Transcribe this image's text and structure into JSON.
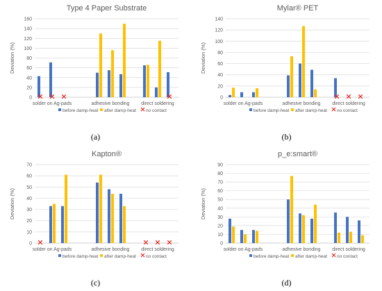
{
  "legend_labels": [
    "before damp-heat",
    "after damp-heat",
    "no contact"
  ],
  "colors": {
    "before": "#4472C4",
    "after": "#FFC000",
    "nocontact": "#E8261F",
    "grid": "#d9d9d9",
    "axis": "#bfbfbf",
    "text": "#595959"
  },
  "chart_data": [
    {
      "type": "bar",
      "panel_label": "(a)",
      "title": "Type 4 Paper Substrate",
      "ylabel": "Deviation (%)",
      "xlabel": "",
      "ylim": [
        0,
        160
      ],
      "yticks": [
        0,
        20,
        40,
        60,
        80,
        100,
        120,
        140,
        160
      ],
      "grid": true,
      "legend_position": "bottom",
      "groups": [
        "solder on Ag-pads",
        "adhesive bonding",
        "direct soldering"
      ],
      "series": [
        {
          "name": "before damp-heat",
          "values": [
            [
              43,
              71,
              null
            ],
            [
              50,
              55,
              47
            ],
            [
              65,
              20,
              51
            ]
          ]
        },
        {
          "name": "after damp-heat",
          "values": [
            [
              null,
              null,
              null
            ],
            [
              130,
              96,
              150
            ],
            [
              66,
              115,
              null
            ]
          ]
        }
      ],
      "no_contact": [
        [
          true,
          true,
          true
        ],
        [
          false,
          false,
          false
        ],
        [
          false,
          false,
          true
        ]
      ]
    },
    {
      "type": "bar",
      "panel_label": "(b)",
      "title": "Mylar® PET",
      "ylabel": "Deviation (%)",
      "xlabel": "",
      "ylim": [
        0,
        140
      ],
      "yticks": [
        0,
        20,
        40,
        60,
        80,
        100,
        120,
        140
      ],
      "grid": true,
      "legend_position": "bottom",
      "groups": [
        "solder on Ag-pads",
        "adhesive bonding",
        "direct soldering"
      ],
      "series": [
        {
          "name": "before damp-heat",
          "values": [
            [
              4,
              9,
              9
            ],
            [
              39,
              60,
              49
            ],
            [
              34,
              null,
              null
            ]
          ]
        },
        {
          "name": "after damp-heat",
          "values": [
            [
              17,
              null,
              16
            ],
            [
              73,
              127,
              14
            ],
            [
              null,
              null,
              null
            ]
          ]
        }
      ],
      "no_contact": [
        [
          false,
          false,
          false
        ],
        [
          false,
          false,
          false
        ],
        [
          true,
          true,
          true
        ]
      ]
    },
    {
      "type": "bar",
      "panel_label": "(c)",
      "title": "Kapton®",
      "ylabel": "Deviation (%)",
      "xlabel": "",
      "ylim": [
        0,
        70
      ],
      "yticks": [
        0,
        10,
        20,
        30,
        40,
        50,
        60,
        70
      ],
      "grid": true,
      "legend_position": "bottom",
      "groups": [
        "solder on Ag-pads",
        "adhesive bonding",
        "direct soldering"
      ],
      "series": [
        {
          "name": "before damp-heat",
          "values": [
            [
              null,
              33,
              33
            ],
            [
              54,
              48,
              44
            ],
            [
              null,
              null,
              null
            ]
          ]
        },
        {
          "name": "after damp-heat",
          "values": [
            [
              null,
              35,
              61
            ],
            [
              61,
              44,
              33
            ],
            [
              null,
              null,
              null
            ]
          ]
        }
      ],
      "no_contact": [
        [
          true,
          false,
          false
        ],
        [
          false,
          false,
          false
        ],
        [
          true,
          true,
          true
        ]
      ]
    },
    {
      "type": "bar",
      "panel_label": "(d)",
      "title": "p_e:smart®",
      "ylabel": "Deviation (%)",
      "xlabel": "",
      "ylim": [
        0,
        90
      ],
      "yticks": [
        0,
        10,
        20,
        30,
        40,
        50,
        60,
        70,
        80,
        90
      ],
      "grid": true,
      "legend_position": "bottom",
      "groups": [
        "solder on Ag-pads",
        "adhesive bonding",
        "direct soldering"
      ],
      "series": [
        {
          "name": "before damp-heat",
          "values": [
            [
              28,
              15,
              15
            ],
            [
              50,
              34,
              28
            ],
            [
              35,
              30,
              26
            ]
          ]
        },
        {
          "name": "after damp-heat",
          "values": [
            [
              19,
              10,
              14
            ],
            [
              77,
              32,
              44
            ],
            [
              12,
              13,
              9
            ]
          ]
        }
      ],
      "no_contact": [
        [
          false,
          false,
          false
        ],
        [
          false,
          false,
          false
        ],
        [
          false,
          false,
          false
        ]
      ]
    }
  ]
}
